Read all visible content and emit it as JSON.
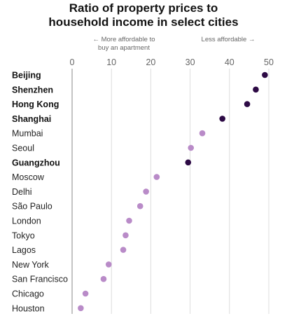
{
  "title_line1": "Ratio of property prices to",
  "title_line2": "household income in select cities",
  "annotation_left_line1": "← More affordable to",
  "annotation_left_line2": "buy an apartment",
  "annotation_right": "Less affordable →",
  "colors": {
    "highlight": "#2d0a45",
    "normal": "#b98bc8",
    "grid": "#dcdcdc",
    "axis": "#888888"
  },
  "chart_data": {
    "type": "scatter",
    "orientation": "horizontal dot plot",
    "xlim": [
      0,
      50
    ],
    "xticks": [
      0,
      10,
      20,
      30,
      40,
      50
    ],
    "grid": "vertical gridlines at ticks",
    "legend": "none",
    "points": [
      {
        "city": "Beijing",
        "value": 49.0,
        "highlighted": true
      },
      {
        "city": "Shenzhen",
        "value": 46.7,
        "highlighted": true
      },
      {
        "city": "Hong Kong",
        "value": 44.5,
        "highlighted": true
      },
      {
        "city": "Shanghai",
        "value": 38.2,
        "highlighted": true
      },
      {
        "city": "Mumbai",
        "value": 33.1,
        "highlighted": false
      },
      {
        "city": "Seoul",
        "value": 30.2,
        "highlighted": false
      },
      {
        "city": "Guangzhou",
        "value": 29.5,
        "highlighted": true
      },
      {
        "city": "Moscow",
        "value": 21.5,
        "highlighted": false
      },
      {
        "city": "Delhi",
        "value": 18.8,
        "highlighted": false
      },
      {
        "city": "São Paulo",
        "value": 17.3,
        "highlighted": false
      },
      {
        "city": "London",
        "value": 14.5,
        "highlighted": false
      },
      {
        "city": "Tokyo",
        "value": 13.6,
        "highlighted": false
      },
      {
        "city": "Lagos",
        "value": 13.0,
        "highlighted": false
      },
      {
        "city": "New York",
        "value": 9.3,
        "highlighted": false
      },
      {
        "city": "San Francisco",
        "value": 8.0,
        "highlighted": false
      },
      {
        "city": "Chicago",
        "value": 3.4,
        "highlighted": false
      },
      {
        "city": "Houston",
        "value": 2.2,
        "highlighted": false
      }
    ]
  }
}
